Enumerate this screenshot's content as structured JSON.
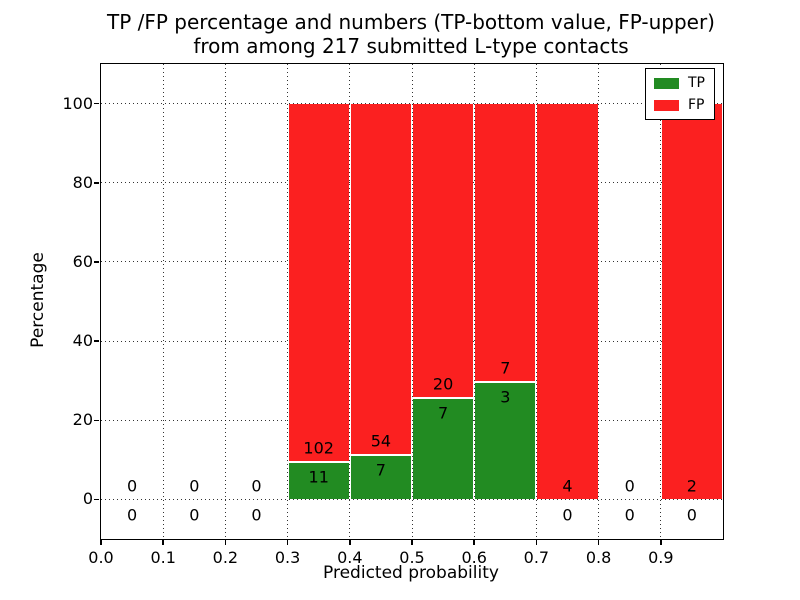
{
  "figure": {
    "title_line1": "TP /FP percentage and numbers (TP-bottom value, FP-upper)",
    "title_line2": "from among 217 submitted L-type contacts"
  },
  "legend": {
    "entries": [
      {
        "label": "TP",
        "color": "#228b22"
      },
      {
        "label": "FP",
        "color": "#fb2020"
      }
    ]
  },
  "chart_data": {
    "type": "bar",
    "stacked": true,
    "normalization": "each bin scaled to percentage of bin total (TP bottom, FP stacked to 100%)",
    "title": "TP /FP percentage and numbers (TP-bottom value, FP-upper)\nfrom among 217 submitted L-type contacts",
    "xlabel": "Predicted probability",
    "ylabel": "Percentage",
    "total_submitted_contacts": 217,
    "xlim": [
      0.0,
      1.0
    ],
    "ylim": [
      -10,
      110
    ],
    "grid": "dotted both axes",
    "legend_position": "upper right",
    "xticks": [
      {
        "v": 0.0,
        "label": "0.0"
      },
      {
        "v": 0.1,
        "label": "0.1"
      },
      {
        "v": 0.2,
        "label": "0.2"
      },
      {
        "v": 0.3,
        "label": "0.3"
      },
      {
        "v": 0.4,
        "label": "0.4"
      },
      {
        "v": 0.5,
        "label": "0.5"
      },
      {
        "v": 0.6,
        "label": "0.6"
      },
      {
        "v": 0.7,
        "label": "0.7"
      },
      {
        "v": 0.8,
        "label": "0.8"
      },
      {
        "v": 0.9,
        "label": "0.9"
      }
    ],
    "yticks": [
      {
        "v": 0,
        "label": "0"
      },
      {
        "v": 20,
        "label": "20"
      },
      {
        "v": 40,
        "label": "40"
      },
      {
        "v": 60,
        "label": "60"
      },
      {
        "v": 80,
        "label": "80"
      },
      {
        "v": 100,
        "label": "100"
      }
    ],
    "series": [
      {
        "name": "TP",
        "color": "#228b22",
        "counts": [
          0,
          0,
          0,
          11,
          7,
          7,
          3,
          0,
          0,
          0
        ]
      },
      {
        "name": "FP",
        "color": "#fb2020",
        "counts": [
          0,
          0,
          0,
          102,
          54,
          20,
          7,
          4,
          0,
          2
        ]
      }
    ],
    "bins": [
      {
        "range": [
          0.0,
          0.1
        ],
        "tp": 0,
        "fp": 0,
        "tp_pct": 0,
        "fp_pct": 0,
        "tp_label": "0",
        "fp_label": "0"
      },
      {
        "range": [
          0.1,
          0.2
        ],
        "tp": 0,
        "fp": 0,
        "tp_pct": 0,
        "fp_pct": 0,
        "tp_label": "0",
        "fp_label": "0"
      },
      {
        "range": [
          0.2,
          0.3
        ],
        "tp": 0,
        "fp": 0,
        "tp_pct": 0,
        "fp_pct": 0,
        "tp_label": "0",
        "fp_label": "0"
      },
      {
        "range": [
          0.3,
          0.4
        ],
        "tp": 11,
        "fp": 102,
        "tp_pct": 9.73,
        "fp_pct": 90.27,
        "tp_label": "11",
        "fp_label": "102"
      },
      {
        "range": [
          0.4,
          0.5
        ],
        "tp": 7,
        "fp": 54,
        "tp_pct": 11.48,
        "fp_pct": 88.52,
        "tp_label": "7",
        "fp_label": "54"
      },
      {
        "range": [
          0.5,
          0.6
        ],
        "tp": 7,
        "fp": 20,
        "tp_pct": 25.93,
        "fp_pct": 74.07,
        "tp_label": "7",
        "fp_label": "20"
      },
      {
        "range": [
          0.6,
          0.7
        ],
        "tp": 3,
        "fp": 7,
        "tp_pct": 30.0,
        "fp_pct": 70.0,
        "tp_label": "3",
        "fp_label": "7"
      },
      {
        "range": [
          0.7,
          0.8
        ],
        "tp": 0,
        "fp": 4,
        "tp_pct": 0,
        "fp_pct": 100,
        "tp_label": "0",
        "fp_label": "4"
      },
      {
        "range": [
          0.8,
          0.9
        ],
        "tp": 0,
        "fp": 0,
        "tp_pct": 0,
        "fp_pct": 0,
        "tp_label": "0",
        "fp_label": "0"
      },
      {
        "range": [
          0.9,
          1.0
        ],
        "tp": 0,
        "fp": 2,
        "tp_pct": 0,
        "fp_pct": 100,
        "tp_label": "0",
        "fp_label": "2"
      }
    ],
    "colors": {
      "tp": "#228b22",
      "fp": "#fb2020",
      "grid": "#000000",
      "background": "#ffffff"
    }
  }
}
